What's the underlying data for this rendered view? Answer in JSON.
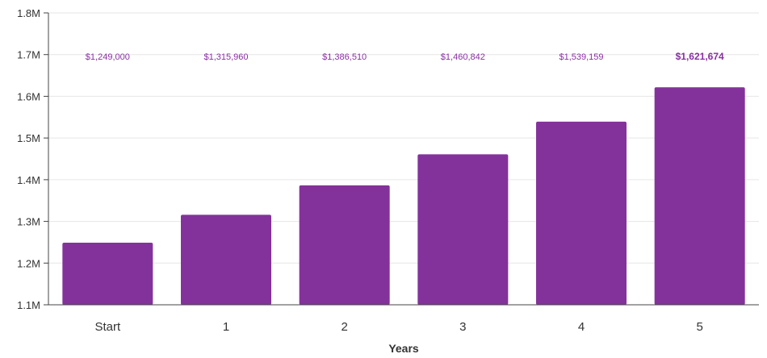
{
  "chart_data": {
    "type": "bar",
    "title": "",
    "xlabel": "Years",
    "ylabel": "",
    "categories": [
      "Start",
      "1",
      "2",
      "3",
      "4",
      "5"
    ],
    "values": [
      1249000,
      1315960,
      1386510,
      1460842,
      1539159,
      1621674
    ],
    "data_labels": [
      "$1,249,000",
      "$1,315,960",
      "$1,386,510",
      "$1,460,842",
      "$1,539,159",
      "$1,621,674"
    ],
    "emphasized_label_index": 5,
    "ylim": [
      1100000,
      1800000
    ],
    "y_ticks": [
      1100000,
      1200000,
      1300000,
      1400000,
      1500000,
      1600000,
      1700000,
      1800000
    ],
    "y_tick_labels": [
      "1.1M",
      "1.2M",
      "1.3M",
      "1.4M",
      "1.5M",
      "1.6M",
      "1.7M",
      "1.8M"
    ],
    "grid": true,
    "legend": "none",
    "colors": {
      "bar": "#84329b",
      "data_label": "#8a2fa3",
      "grid": "#e6e6e6",
      "axis": "#444444"
    }
  }
}
